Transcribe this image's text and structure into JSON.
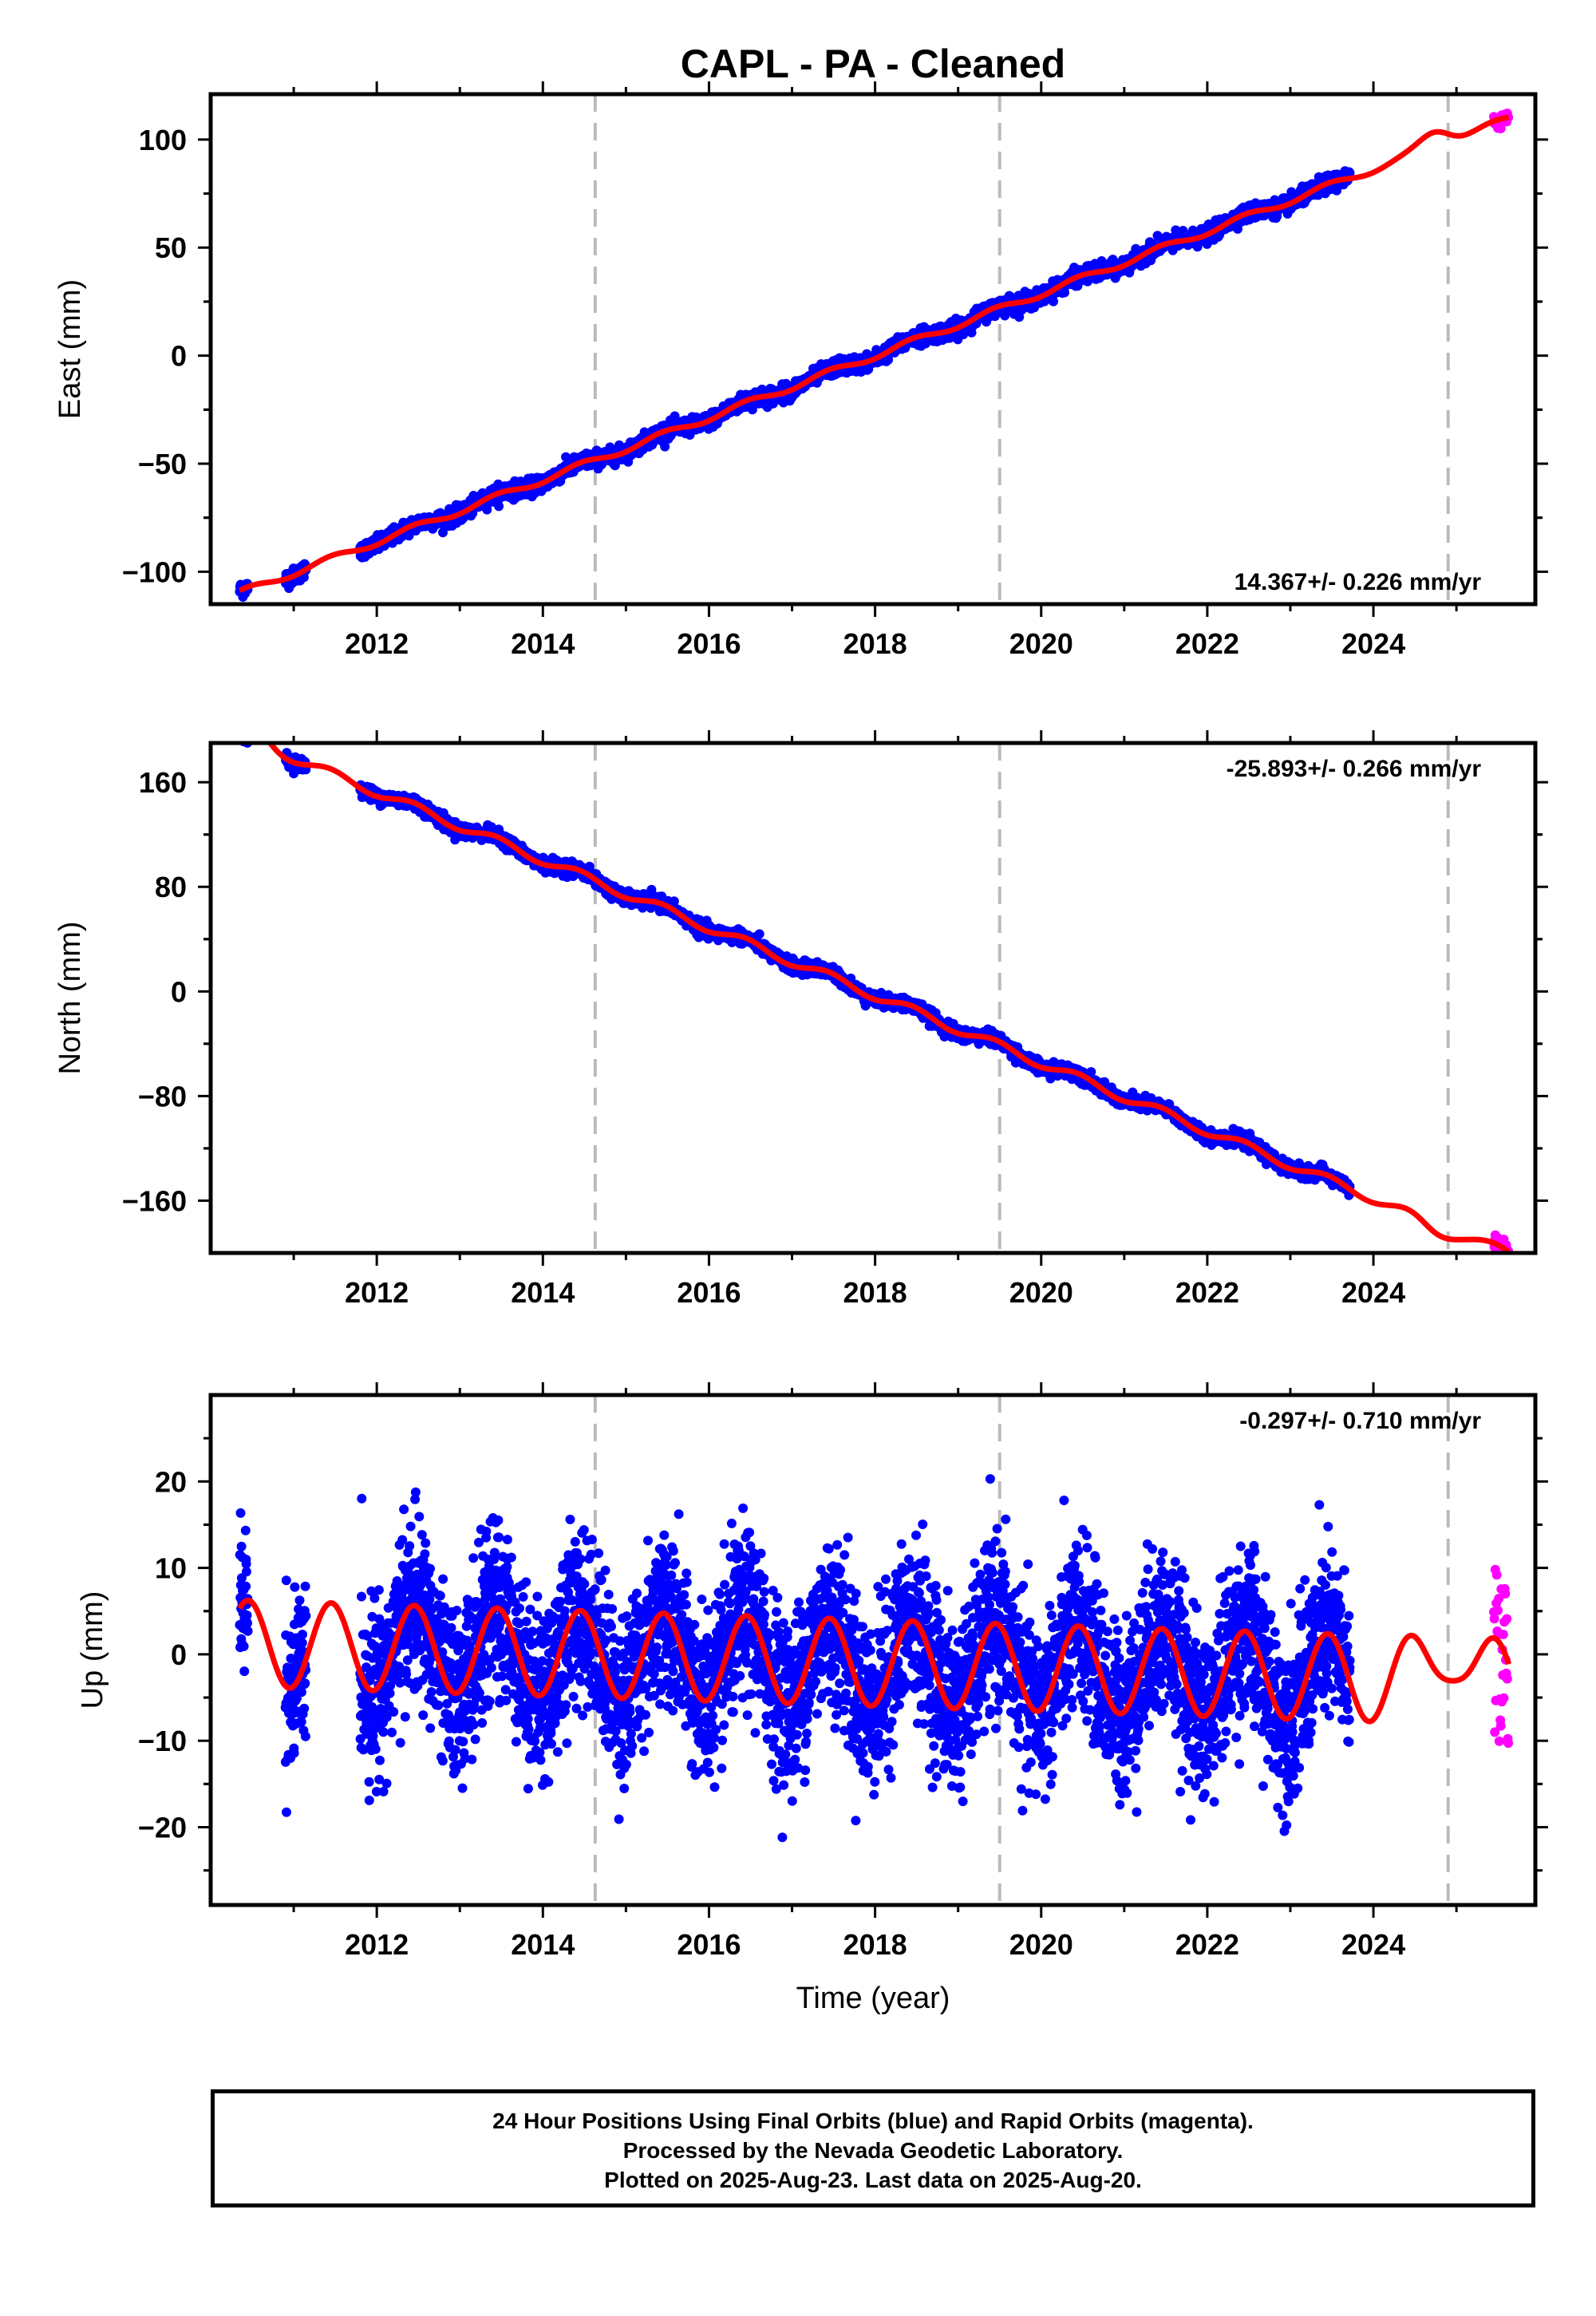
{
  "title": "CAPL  - PA - Cleaned",
  "xlabel": "Time (year)",
  "colors": {
    "final_orbits": "#0000ff",
    "rapid_orbits": "#ff00ff",
    "model": "#ff0000",
    "steps": "#bbbbbb"
  },
  "footer": {
    "line1": "24 Hour Positions Using Final Orbits (blue) and Rapid Orbits (magenta).",
    "line2": "Processed by the Nevada Geodetic Laboratory.",
    "line3": "Plotted on 2025-Aug-23. Last data on 2025-Aug-20."
  },
  "chart_data": [
    {
      "type": "scatter",
      "ylabel": "East (mm)",
      "rate_label": "14.367+/- 0.226 mm/yr",
      "xlim": [
        2010.0,
        2025.95
      ],
      "ylim": [
        -115,
        121
      ],
      "xticks": [
        2012,
        2014,
        2016,
        2018,
        2020,
        2022,
        2024
      ],
      "yticks": [
        -100,
        -50,
        0,
        50,
        100
      ],
      "step_epochs": [
        2014.63,
        2019.5,
        2024.9
      ],
      "data_segments": [
        [
          2010.35,
          2010.45
        ],
        [
          2010.9,
          2011.15
        ],
        [
          2011.8,
          2023.72
        ]
      ],
      "rapid_segment": [
        2025.45,
        2025.63
      ],
      "trend": {
        "t0": 2018.0,
        "y0": 0,
        "rate": 14.367
      },
      "seasonal_amplitude": 1.5,
      "scatter_sigma": 1.8,
      "model_extras": [
        [
          2024.75,
          7
        ]
      ],
      "grid": false
    },
    {
      "type": "scatter",
      "ylabel": "North (mm)",
      "rate_label": "-25.893+/- 0.266 mm/yr",
      "xlim": [
        2010.0,
        2025.95
      ],
      "ylim": [
        -200,
        190
      ],
      "xticks": [
        2012,
        2014,
        2016,
        2018,
        2020,
        2022,
        2024
      ],
      "yticks": [
        -160,
        -80,
        0,
        80,
        160
      ],
      "step_epochs": [
        2014.63,
        2019.5,
        2024.9
      ],
      "data_segments": [
        [
          2010.35,
          2010.45
        ],
        [
          2010.9,
          2011.15
        ],
        [
          2011.8,
          2023.72
        ]
      ],
      "rapid_segment": [
        2025.45,
        2025.63
      ],
      "trend": {
        "t0": 2018.0,
        "y0": -3,
        "rate": -25.893
      },
      "seasonal_amplitude": 3.5,
      "scatter_sigma": 2.5,
      "model_extras": [
        [
          2010.5,
          10
        ],
        [
          2024.75,
          -6
        ]
      ],
      "grid": false
    },
    {
      "type": "scatter",
      "ylabel": "Up (mm)",
      "rate_label": "-0.297+/- 0.710 mm/yr",
      "xlim": [
        2010.0,
        2025.95
      ],
      "ylim": [
        -29,
        30
      ],
      "xticks": [
        2012,
        2014,
        2016,
        2018,
        2020,
        2022,
        2024
      ],
      "yticks": [
        -20,
        -10,
        0,
        10,
        20
      ],
      "step_epochs": [
        2014.63,
        2019.5,
        2024.9
      ],
      "data_segments": [
        [
          2010.35,
          2010.45
        ],
        [
          2010.9,
          2011.15
        ],
        [
          2011.8,
          2023.72
        ]
      ],
      "rapid_segment": [
        2025.45,
        2025.63
      ],
      "trend": {
        "t0": 2018.0,
        "y0": -1,
        "rate": -0.297
      },
      "seasonal_amplitude": 5,
      "scatter_sigma": 4.8,
      "model_extras": [
        [
          2024.95,
          5
        ]
      ],
      "grid": false
    }
  ]
}
